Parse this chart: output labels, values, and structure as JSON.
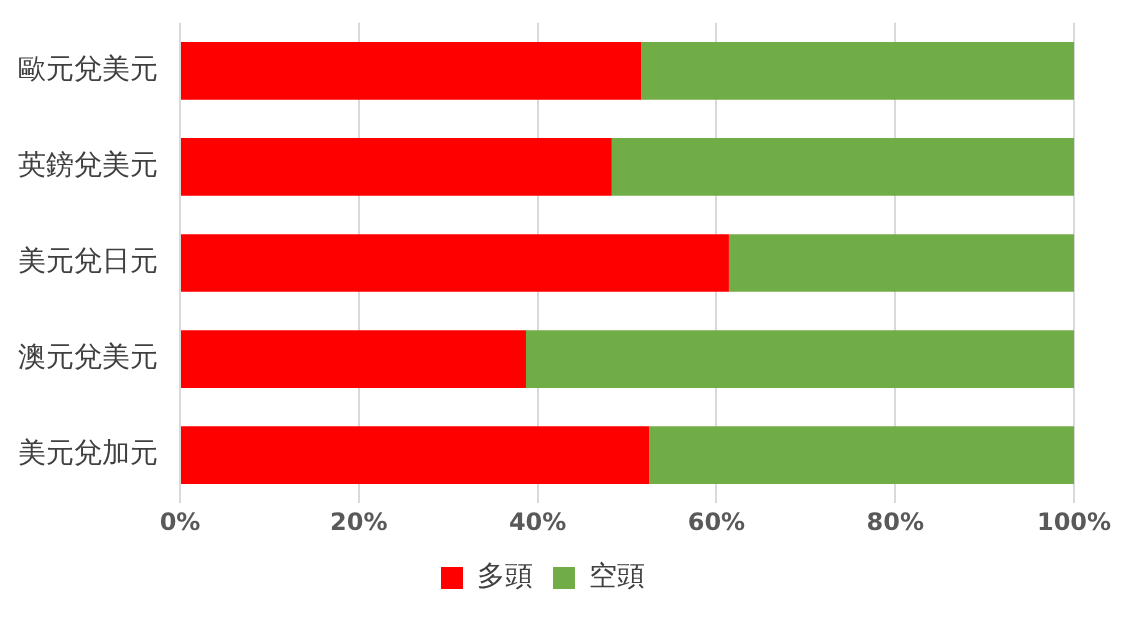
{
  "chart_data": {
    "type": "bar",
    "orientation": "horizontal",
    "stacked": true,
    "categories": [
      "歐元兌美元",
      "英鎊兌美元",
      "美元兌日元",
      "澳元兌美元",
      "美元兌加元"
    ],
    "series": [
      {
        "name": "多頭",
        "color": "#ff0000",
        "values": [
          51.6,
          48.3,
          61.4,
          38.7,
          52.5
        ]
      },
      {
        "name": "空頭",
        "color": "#70ad47",
        "values": [
          48.4,
          51.7,
          38.6,
          61.3,
          47.5
        ]
      }
    ],
    "xlim": [
      0,
      100
    ],
    "xticks": [
      {
        "value": 0,
        "label": "0%"
      },
      {
        "value": 20,
        "label": "20%"
      },
      {
        "value": 40,
        "label": "40%"
      },
      {
        "value": 60,
        "label": "60%"
      },
      {
        "value": 80,
        "label": "80%"
      },
      {
        "value": 100,
        "label": "100%"
      }
    ],
    "grid": "x",
    "legend": "bottom"
  }
}
